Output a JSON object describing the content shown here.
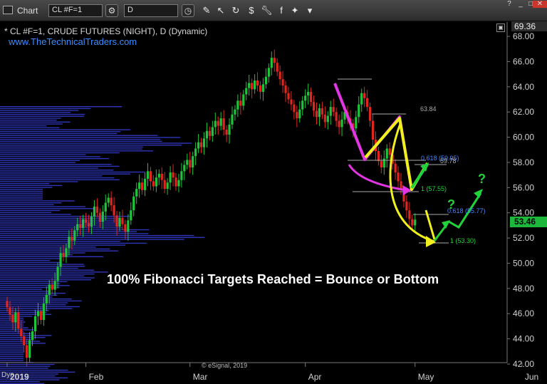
{
  "toolbar": {
    "app_title": "Chart",
    "symbol": "CL #F=1",
    "interval": "D",
    "icons": [
      "settings-icon",
      "clock-icon",
      "pencil-icon",
      "cursor-icon",
      "refresh-icon",
      "dollar-icon",
      "wrench-icon",
      "facebook-icon",
      "twitter-icon",
      "chevron-down-icon"
    ]
  },
  "chart_header": {
    "info": "* CL #F=1, CRUDE FUTURES (NIGHT), D (Dynamic)",
    "website": "www.TheTechnicalTraders.com",
    "top_price": "69.36"
  },
  "headline": "100% Fibonacci Targets Reached = Bounce or Bottom",
  "watermark": "© eSignal, 2019",
  "footer_label": "Dyn",
  "last_price_badge": "53.46",
  "colors": {
    "background": "#000000",
    "up_candle": "#1fc43a",
    "down_candle": "#e0261f",
    "volume_profile": "#2e35b8",
    "magenta_path": "#e335e3",
    "yellow_path": "#f0f01e",
    "green_projection": "#21d23a",
    "fib_label": "#4a86ff"
  },
  "chart_data": {
    "type": "candlestick",
    "title": "",
    "ylim": [
      42,
      69.36
    ],
    "y_ticks": [
      42,
      44,
      46,
      48,
      50,
      52,
      54,
      56,
      58,
      60,
      62,
      64,
      66,
      68
    ],
    "y_tick_labels": [
      "42.00",
      "44.00",
      "46.00",
      "48.00",
      "50.00",
      "52.00",
      "54.00",
      "56.00",
      "58.00",
      "60.00",
      "62.00",
      "64.00",
      "66.00",
      "68.00"
    ],
    "x_tick_labels": [
      "2019",
      "Feb",
      "Mar",
      "Apr",
      "May",
      "Jun"
    ],
    "x_tick_index": [
      0,
      28,
      65,
      106,
      145,
      183
    ],
    "grid": false,
    "close": [
      46.5,
      45.9,
      45.3,
      46.1,
      44.8,
      44.2,
      43.5,
      42.5,
      43.9,
      44.6,
      45.8,
      46.2,
      45.5,
      46.8,
      47.5,
      48.3,
      47.9,
      48.6,
      49.7,
      50.8,
      50.5,
      51.2,
      52.1,
      51.8,
      52.6,
      53.1,
      52.8,
      53.5,
      53.2,
      52.9,
      53.7,
      54.5,
      54.0,
      53.3,
      54.1,
      54.8,
      55.2,
      54.6,
      53.8,
      52.9,
      53.6,
      53.1,
      52.5,
      53.4,
      54.2,
      55.3,
      55.9,
      56.4,
      55.8,
      56.7,
      57.3,
      56.5,
      56.1,
      56.8,
      57.1,
      56.6,
      55.9,
      56.4,
      57.2,
      56.8,
      56.1,
      56.6,
      57.3,
      57.8,
      58.2,
      57.6,
      58.5,
      59.1,
      59.6,
      59.2,
      59.9,
      60.5,
      60.1,
      60.8,
      61.3,
      60.9,
      61.5,
      60.6,
      60.2,
      61.0,
      61.8,
      62.2,
      62.9,
      62.5,
      63.4,
      63.9,
      64.3,
      63.8,
      64.5,
      64.1,
      63.6,
      64.2,
      64.8,
      65.5,
      66.3,
      65.9,
      65.2,
      64.6,
      64.1,
      63.5,
      63.0,
      62.6,
      62.0,
      61.5,
      62.2,
      62.9,
      63.3,
      63.6,
      62.8,
      62.1,
      61.6,
      62.3,
      61.8,
      61.2,
      61.7,
      62.4,
      62.0,
      61.3,
      60.8,
      61.4,
      62.0,
      61.5,
      61.1,
      60.7,
      61.6,
      62.6,
      63.5,
      63.1,
      62.4,
      61.3,
      59.8,
      58.9,
      58.1,
      57.6,
      58.3,
      59.1,
      58.6,
      57.9,
      57.2,
      56.5,
      55.8,
      54.9,
      54.2,
      53.5,
      53.0,
      53.46
    ],
    "annotations": [
      "63.84",
      "0.618 (59.95)",
      "59.78",
      "1 (57.55)",
      "0.618 (55.77)",
      "1 (53.30)",
      "?",
      "?"
    ]
  }
}
